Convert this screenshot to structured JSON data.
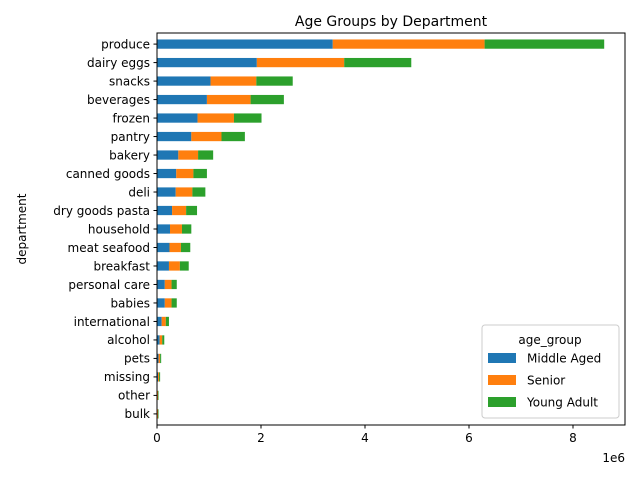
{
  "chart_data": {
    "type": "bar",
    "orientation": "horizontal",
    "stacked": true,
    "title": "Age Groups by Department",
    "ylabel": "department",
    "xlabel": "",
    "x_offset_label": "1e6",
    "x_tick_labels": [
      "0",
      "2",
      "4",
      "6",
      "8"
    ],
    "x_ticks": [
      0,
      2000000,
      4000000,
      6000000,
      8000000
    ],
    "xlim": [
      0,
      9000000
    ],
    "grid": false,
    "legend": {
      "title": "age_group",
      "placement": "lower-right"
    },
    "categories": [
      "produce",
      "dairy eggs",
      "snacks",
      "beverages",
      "frozen",
      "pantry",
      "bakery",
      "canned goods",
      "deli",
      "dry goods pasta",
      "household",
      "meat seafood",
      "breakfast",
      "personal care",
      "babies",
      "international",
      "alcohol",
      "pets",
      "missing",
      "other",
      "bulk"
    ],
    "series": [
      {
        "name": "Middle Aged",
        "color": "#1f77b4",
        "values": [
          3380000,
          1920000,
          1030000,
          960000,
          780000,
          660000,
          410000,
          370000,
          360000,
          290000,
          250000,
          240000,
          230000,
          150000,
          150000,
          90000,
          50000,
          30000,
          20000,
          10000,
          10000
        ]
      },
      {
        "name": "Senior",
        "color": "#ff7f0e",
        "values": [
          2920000,
          1680000,
          880000,
          840000,
          700000,
          580000,
          380000,
          330000,
          320000,
          270000,
          230000,
          220000,
          210000,
          130000,
          130000,
          80000,
          50000,
          30000,
          20000,
          10000,
          10000
        ]
      },
      {
        "name": "Young Adult",
        "color": "#2ca02c",
        "values": [
          2300000,
          1290000,
          700000,
          640000,
          530000,
          450000,
          290000,
          260000,
          250000,
          210000,
          180000,
          180000,
          170000,
          100000,
          100000,
          60000,
          40000,
          20000,
          20000,
          10000,
          10000
        ]
      }
    ]
  }
}
